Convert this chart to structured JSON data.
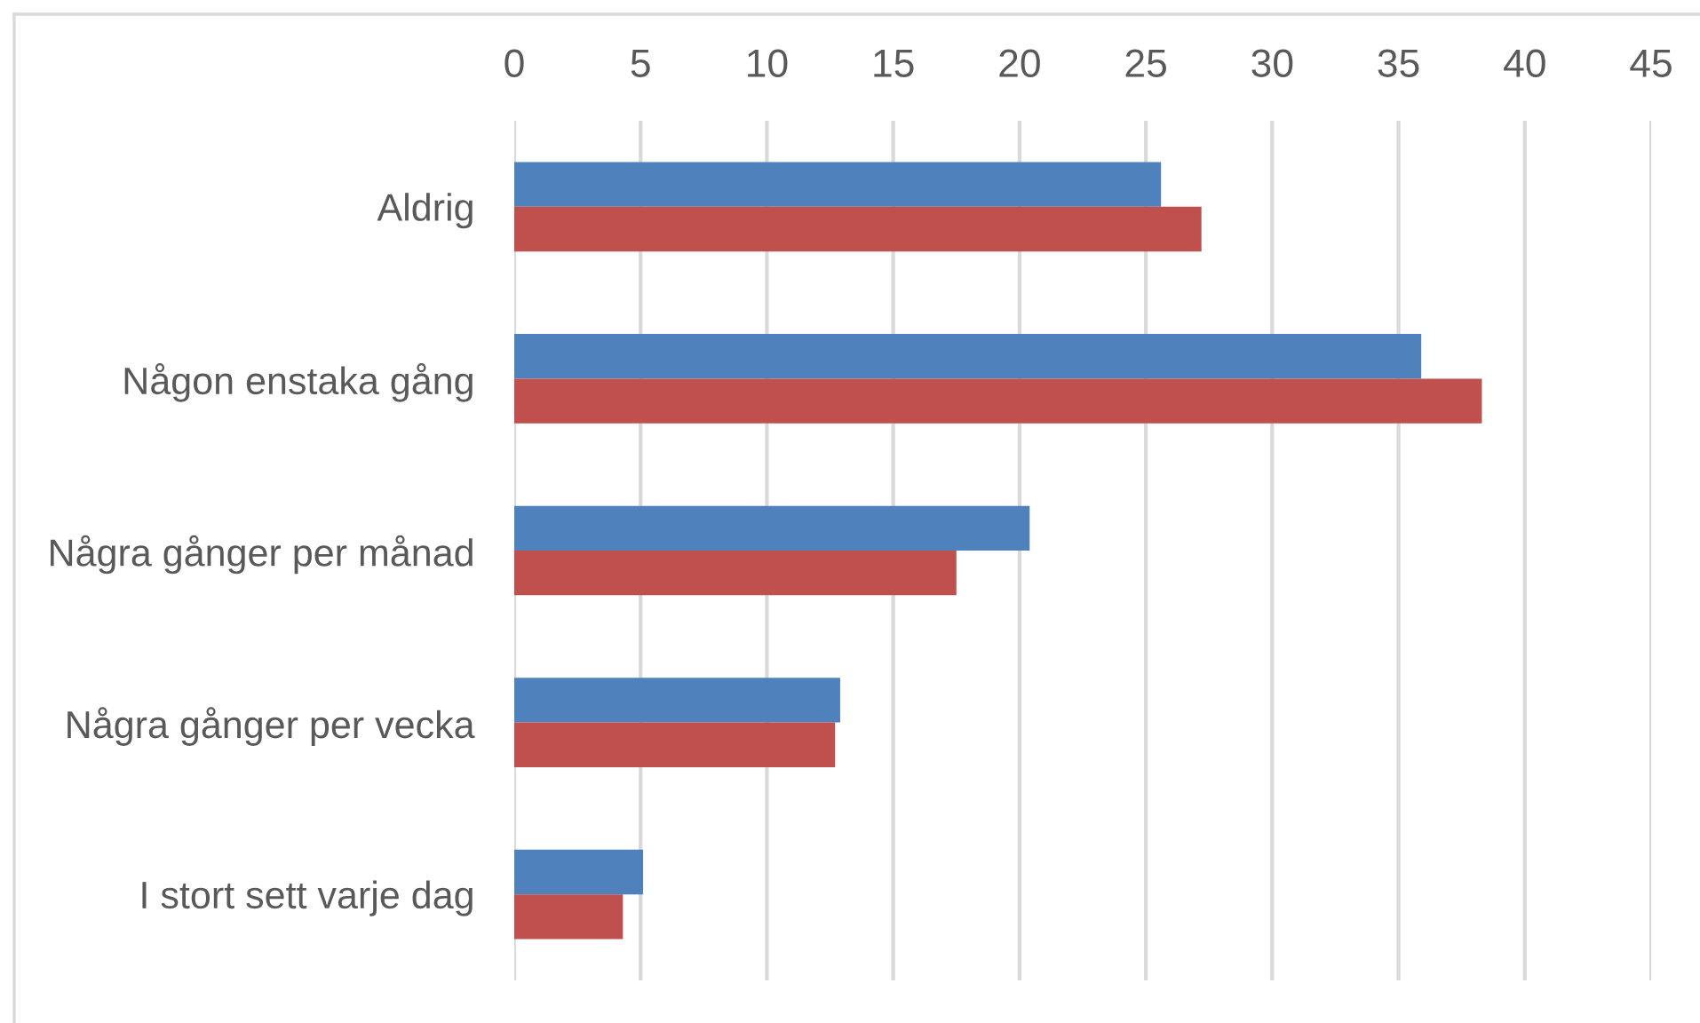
{
  "chart_data": {
    "type": "bar",
    "orientation": "horizontal",
    "categories": [
      "Aldrig",
      "Någon enstaka gång",
      "Några gånger per månad",
      "Några gånger per vecka",
      "I stort sett varje dag"
    ],
    "series": [
      {
        "color": "#4f81bd",
        "values": [
          25.6,
          35.9,
          20.4,
          12.9,
          5.1
        ]
      },
      {
        "color": "#c0504d",
        "values": [
          27.2,
          38.3,
          17.5,
          12.7,
          4.3
        ]
      }
    ],
    "xlim": [
      0,
      45
    ],
    "xticks": [
      0,
      5,
      10,
      15,
      20,
      25,
      30,
      35,
      40,
      45
    ],
    "grid": "x"
  }
}
